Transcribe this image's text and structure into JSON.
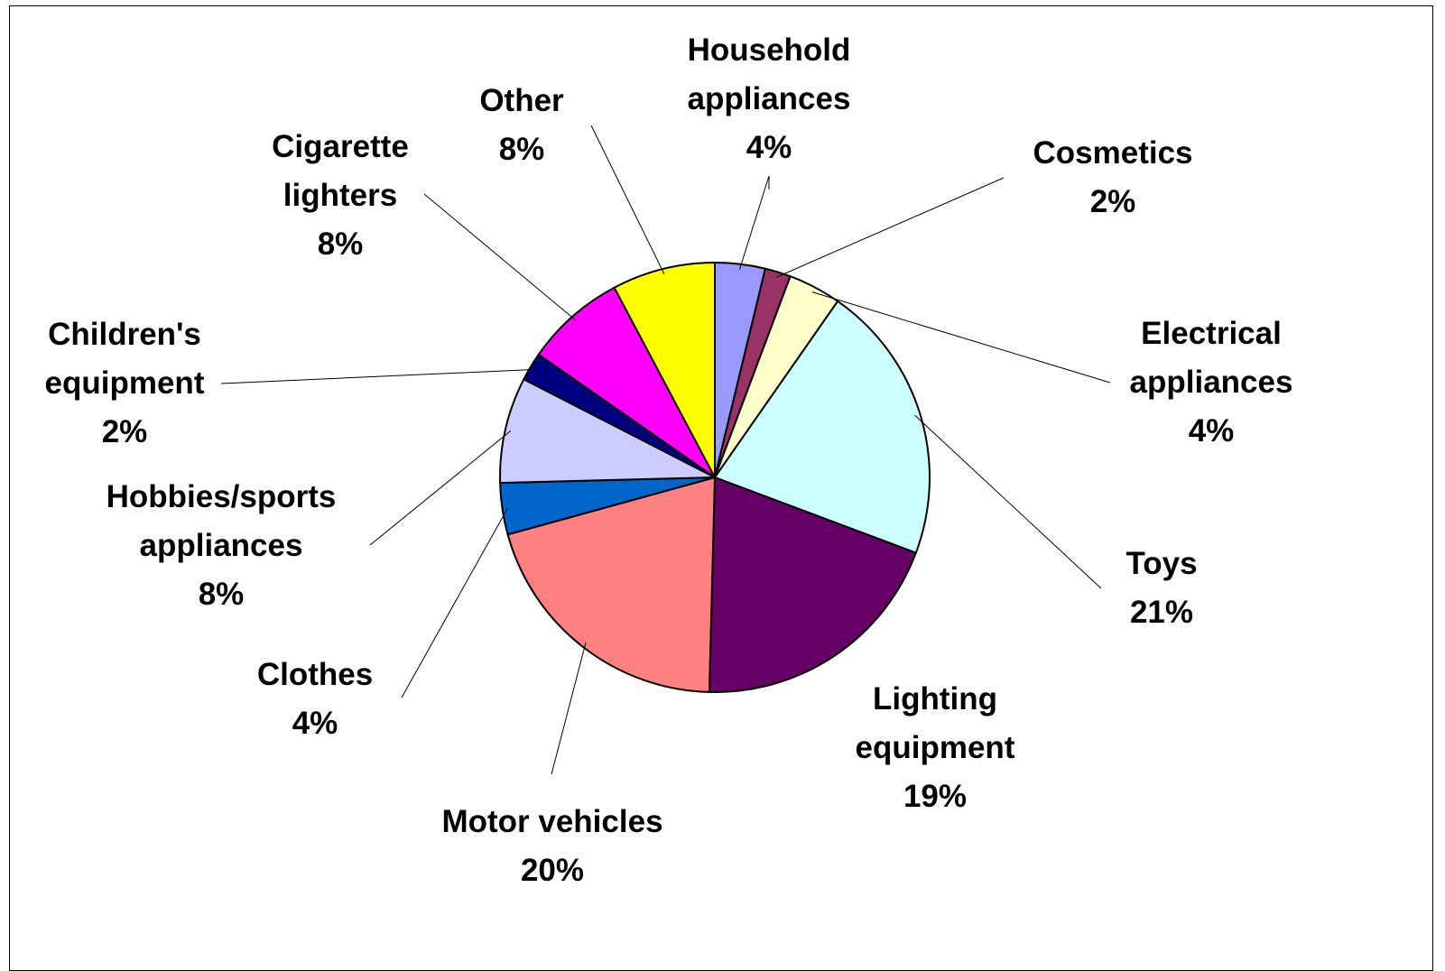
{
  "chart_data": {
    "type": "pie",
    "start_angle_deg": 0,
    "direction": "clockwise",
    "slices": [
      {
        "label": [
          "Household",
          "appliances"
        ],
        "percent_text": "4%",
        "value": 3.7,
        "color": "#9999FF"
      },
      {
        "label": [
          "Cosmetics"
        ],
        "percent_text": "2%",
        "value": 1.9,
        "color": "#993366"
      },
      {
        "label": [
          "Electrical",
          "appliances"
        ],
        "percent_text": "4%",
        "value": 3.9,
        "color": "#FFFFCC"
      },
      {
        "label": [
          "Toys"
        ],
        "percent_text": "21%",
        "value": 20.6,
        "color": "#CCFFFF"
      },
      {
        "label": [
          "Lighting",
          "equipment"
        ],
        "percent_text": "19%",
        "value": 19.3,
        "color": "#660066"
      },
      {
        "label": [
          "Motor vehicles"
        ],
        "percent_text": "20%",
        "value": 19.9,
        "color": "#FF8080"
      },
      {
        "label": [
          "Clothes"
        ],
        "percent_text": "4%",
        "value": 3.8,
        "color": "#0066CC"
      },
      {
        "label": [
          "Hobbies/sports",
          "appliances"
        ],
        "percent_text": "8%",
        "value": 7.8,
        "color": "#CCCCFF"
      },
      {
        "label": [
          "Children's",
          "equipment"
        ],
        "percent_text": "2%",
        "value": 2.1,
        "color": "#000080"
      },
      {
        "label": [
          "Cigarette",
          "lighters"
        ],
        "percent_text": "8%",
        "value": 7.4,
        "color": "#FF00FF"
      },
      {
        "label": [
          "Other"
        ],
        "percent_text": "8%",
        "value": 7.6,
        "color": "#FFFF00"
      }
    ]
  }
}
